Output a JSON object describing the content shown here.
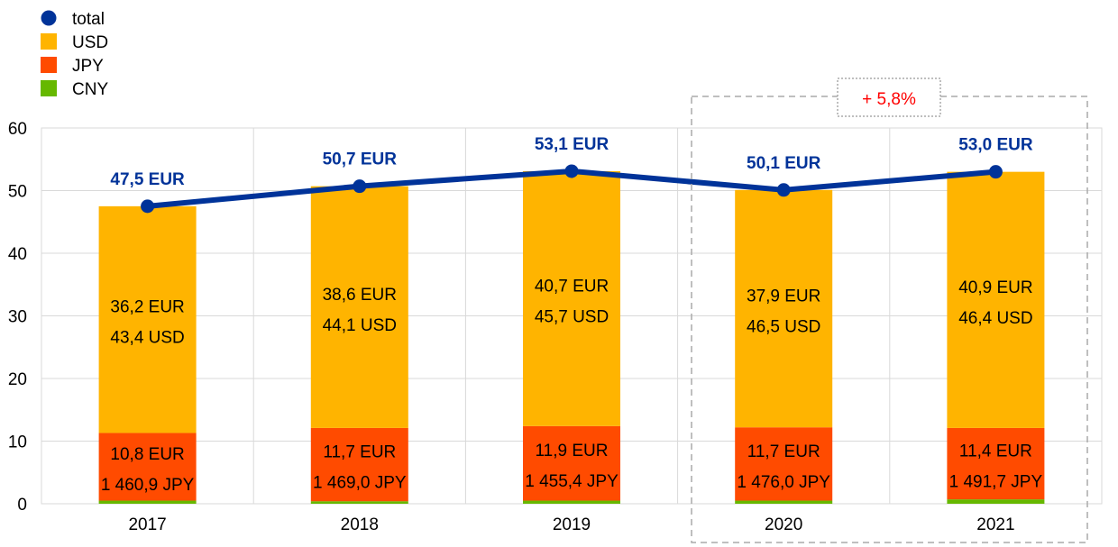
{
  "chart_data": {
    "type": "bar",
    "stacked": true,
    "categories": [
      "2017",
      "2018",
      "2019",
      "2020",
      "2021"
    ],
    "ylim": [
      0,
      60
    ],
    "yticks": [
      0,
      10,
      20,
      30,
      40,
      50,
      60
    ],
    "grid": true,
    "legend_position": "top-left",
    "series": [
      {
        "name": "CNY",
        "color": "#66b800",
        "values": [
          0.5,
          0.4,
          0.5,
          0.5,
          0.7
        ]
      },
      {
        "name": "JPY",
        "color": "#ff4b00",
        "values": [
          10.8,
          11.7,
          11.9,
          11.7,
          11.4
        ],
        "labels_eur": [
          "10,8 EUR",
          "11,7 EUR",
          "11,9 EUR",
          "11,7 EUR",
          "11,4 EUR"
        ],
        "labels_local": [
          "1 460,9 JPY",
          "1 469,0 JPY",
          "1 455,4 JPY",
          "1 476,0 JPY",
          "1 491,7 JPY"
        ]
      },
      {
        "name": "USD",
        "color": "#ffb400",
        "values": [
          36.2,
          38.6,
          40.7,
          37.9,
          40.9
        ],
        "labels_eur": [
          "36,2 EUR",
          "38,6 EUR",
          "40,7 EUR",
          "37,9 EUR",
          "40,9 EUR"
        ],
        "labels_local": [
          "43,4 USD",
          "44,1 USD",
          "45,7 USD",
          "46,5 USD",
          "46,4 USD"
        ]
      }
    ],
    "line": {
      "name": "total",
      "color": "#003399",
      "values": [
        47.5,
        50.7,
        53.1,
        50.1,
        53.0
      ],
      "labels": [
        "47,5 EUR",
        "50,7 EUR",
        "53,1 EUR",
        "50,1 EUR",
        "53,0 EUR"
      ]
    },
    "legend": [
      "total",
      "USD",
      "JPY",
      "CNY"
    ],
    "annotation": {
      "text": "+ 5,8%",
      "color": "#ff0000",
      "spans": [
        "2020",
        "2021"
      ]
    }
  }
}
